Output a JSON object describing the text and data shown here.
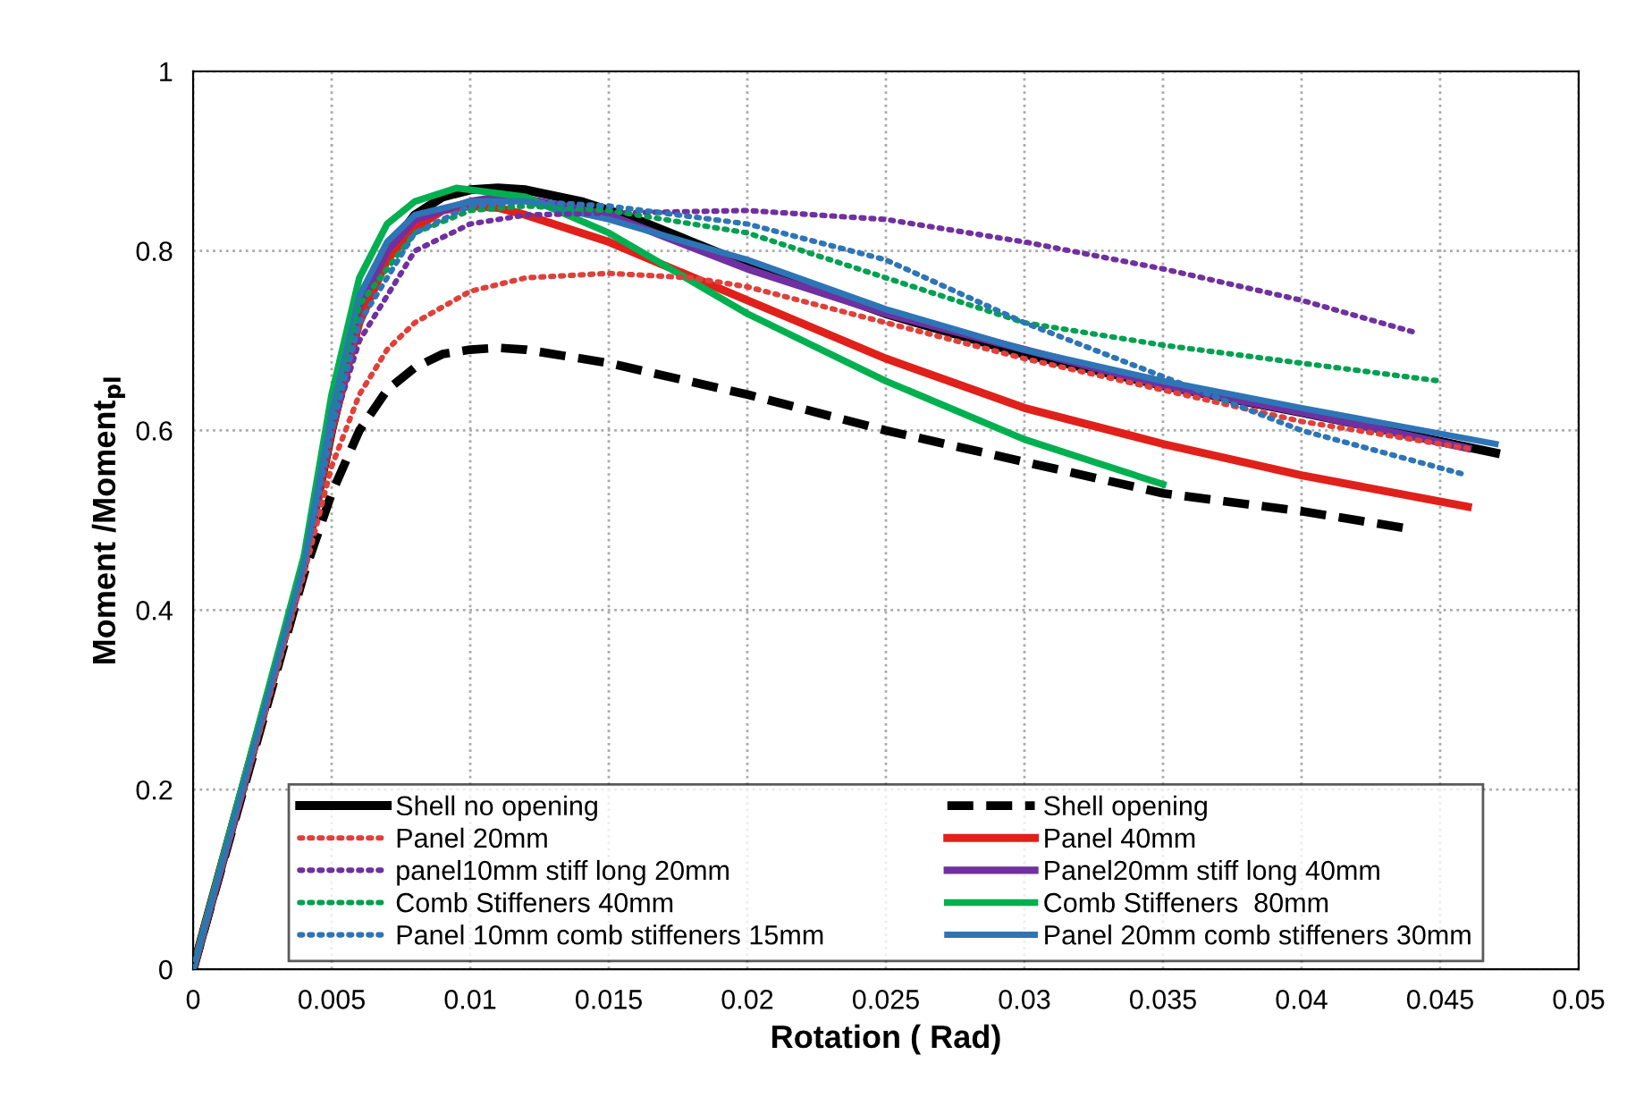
{
  "chart_data": {
    "type": "line",
    "xlabel": "Rotation ( Rad)",
    "ylabel": "Moment /Moment$_{pl}$",
    "xlim": [
      0,
      0.05
    ],
    "ylim": [
      0,
      1
    ],
    "xticks": [
      0,
      0.005,
      0.01,
      0.015,
      0.02,
      0.025,
      0.03,
      0.035,
      0.04,
      0.045,
      0.05
    ],
    "yticks": [
      0,
      0.2,
      0.4,
      0.6,
      0.8,
      1
    ],
    "grid": true,
    "legend": "bottom",
    "marker": "none",
    "series": [
      {
        "name": "Shell no opening",
        "color": "#000000",
        "line_style": "solid",
        "x": [
          0,
          0.004,
          0.005,
          0.006,
          0.007,
          0.008,
          0.009,
          0.01,
          0.011,
          0.012,
          0.014,
          0.016,
          0.018,
          0.02,
          0.025,
          0.03,
          0.035,
          0.04,
          0.047
        ],
        "values": [
          0,
          0.45,
          0.6,
          0.73,
          0.8,
          0.84,
          0.86,
          0.868,
          0.87,
          0.868,
          0.855,
          0.835,
          0.81,
          0.785,
          0.73,
          0.685,
          0.65,
          0.62,
          0.575
        ]
      },
      {
        "name": "Shell opening",
        "color": "#000000",
        "line_style": "dashed",
        "x": [
          0,
          0.004,
          0.005,
          0.006,
          0.007,
          0.008,
          0.009,
          0.01,
          0.011,
          0.012,
          0.015,
          0.02,
          0.025,
          0.03,
          0.035,
          0.04,
          0.044
        ],
        "values": [
          0,
          0.44,
          0.53,
          0.6,
          0.645,
          0.67,
          0.685,
          0.69,
          0.692,
          0.69,
          0.675,
          0.64,
          0.6,
          0.565,
          0.53,
          0.51,
          0.49
        ]
      },
      {
        "name": "Panel 20mm",
        "color": "#e0403a",
        "line_style": "dotted",
        "x": [
          0,
          0.004,
          0.005,
          0.006,
          0.007,
          0.008,
          0.01,
          0.012,
          0.015,
          0.018,
          0.02,
          0.025,
          0.03,
          0.035,
          0.04,
          0.046
        ],
        "values": [
          0,
          0.44,
          0.56,
          0.64,
          0.69,
          0.72,
          0.755,
          0.77,
          0.775,
          0.77,
          0.76,
          0.72,
          0.68,
          0.645,
          0.61,
          0.58
        ]
      },
      {
        "name": "Panel 40mm",
        "color": "#e0201a",
        "line_style": "solid",
        "x": [
          0,
          0.004,
          0.005,
          0.006,
          0.007,
          0.008,
          0.009,
          0.01,
          0.011,
          0.012,
          0.015,
          0.02,
          0.025,
          0.03,
          0.035,
          0.04,
          0.046
        ],
        "values": [
          0,
          0.45,
          0.6,
          0.72,
          0.79,
          0.825,
          0.845,
          0.85,
          0.848,
          0.84,
          0.81,
          0.745,
          0.68,
          0.625,
          0.585,
          0.55,
          0.515
        ]
      },
      {
        "name": "panel10mm stiff long 20mm",
        "color": "#7030a0",
        "line_style": "dotted",
        "x": [
          0,
          0.004,
          0.005,
          0.006,
          0.008,
          0.01,
          0.012,
          0.015,
          0.02,
          0.025,
          0.03,
          0.035,
          0.04,
          0.044
        ],
        "values": [
          0,
          0.45,
          0.6,
          0.7,
          0.8,
          0.83,
          0.84,
          0.842,
          0.845,
          0.835,
          0.81,
          0.78,
          0.745,
          0.71
        ]
      },
      {
        "name": "Panel20mm stiff long 40mm",
        "color": "#7030a0",
        "line_style": "solid",
        "x": [
          0,
          0.004,
          0.005,
          0.006,
          0.007,
          0.008,
          0.01,
          0.011,
          0.012,
          0.015,
          0.02,
          0.025,
          0.03,
          0.035,
          0.04,
          0.046
        ],
        "values": [
          0,
          0.45,
          0.61,
          0.74,
          0.8,
          0.835,
          0.855,
          0.86,
          0.858,
          0.84,
          0.78,
          0.73,
          0.69,
          0.65,
          0.62,
          0.58
        ]
      },
      {
        "name": "Comb Stiffeners 40mm",
        "color": "#00a050",
        "line_style": "dotted",
        "x": [
          0,
          0.004,
          0.005,
          0.006,
          0.008,
          0.01,
          0.012,
          0.015,
          0.02,
          0.025,
          0.03,
          0.035,
          0.04,
          0.045
        ],
        "values": [
          0,
          0.45,
          0.6,
          0.74,
          0.82,
          0.845,
          0.85,
          0.845,
          0.82,
          0.77,
          0.72,
          0.695,
          0.675,
          0.655
        ]
      },
      {
        "name": "Comb Stiffeners  80mm",
        "color": "#00b050",
        "line_style": "solid",
        "x": [
          0,
          0.004,
          0.005,
          0.006,
          0.007,
          0.008,
          0.0095,
          0.012,
          0.015,
          0.02,
          0.025,
          0.03,
          0.035
        ],
        "values": [
          0,
          0.46,
          0.64,
          0.77,
          0.83,
          0.855,
          0.87,
          0.86,
          0.82,
          0.73,
          0.655,
          0.59,
          0.54
        ]
      },
      {
        "name": "Panel 10mm comb stiffeners 15mm",
        "color": "#2e75b6",
        "line_style": "dotted",
        "x": [
          0,
          0.004,
          0.005,
          0.006,
          0.008,
          0.01,
          0.012,
          0.015,
          0.02,
          0.025,
          0.03,
          0.035,
          0.04,
          0.046
        ],
        "values": [
          0,
          0.45,
          0.6,
          0.72,
          0.82,
          0.85,
          0.855,
          0.85,
          0.83,
          0.79,
          0.72,
          0.66,
          0.6,
          0.55
        ]
      },
      {
        "name": "Panel 20mm comb stiffeners 30mm",
        "color": "#2e75b6",
        "line_style": "solid",
        "x": [
          0,
          0.004,
          0.005,
          0.006,
          0.007,
          0.008,
          0.01,
          0.012,
          0.015,
          0.02,
          0.025,
          0.03,
          0.035,
          0.04,
          0.047
        ],
        "values": [
          0,
          0.45,
          0.62,
          0.75,
          0.81,
          0.84,
          0.855,
          0.855,
          0.835,
          0.79,
          0.735,
          0.69,
          0.655,
          0.625,
          0.585
        ]
      }
    ]
  }
}
